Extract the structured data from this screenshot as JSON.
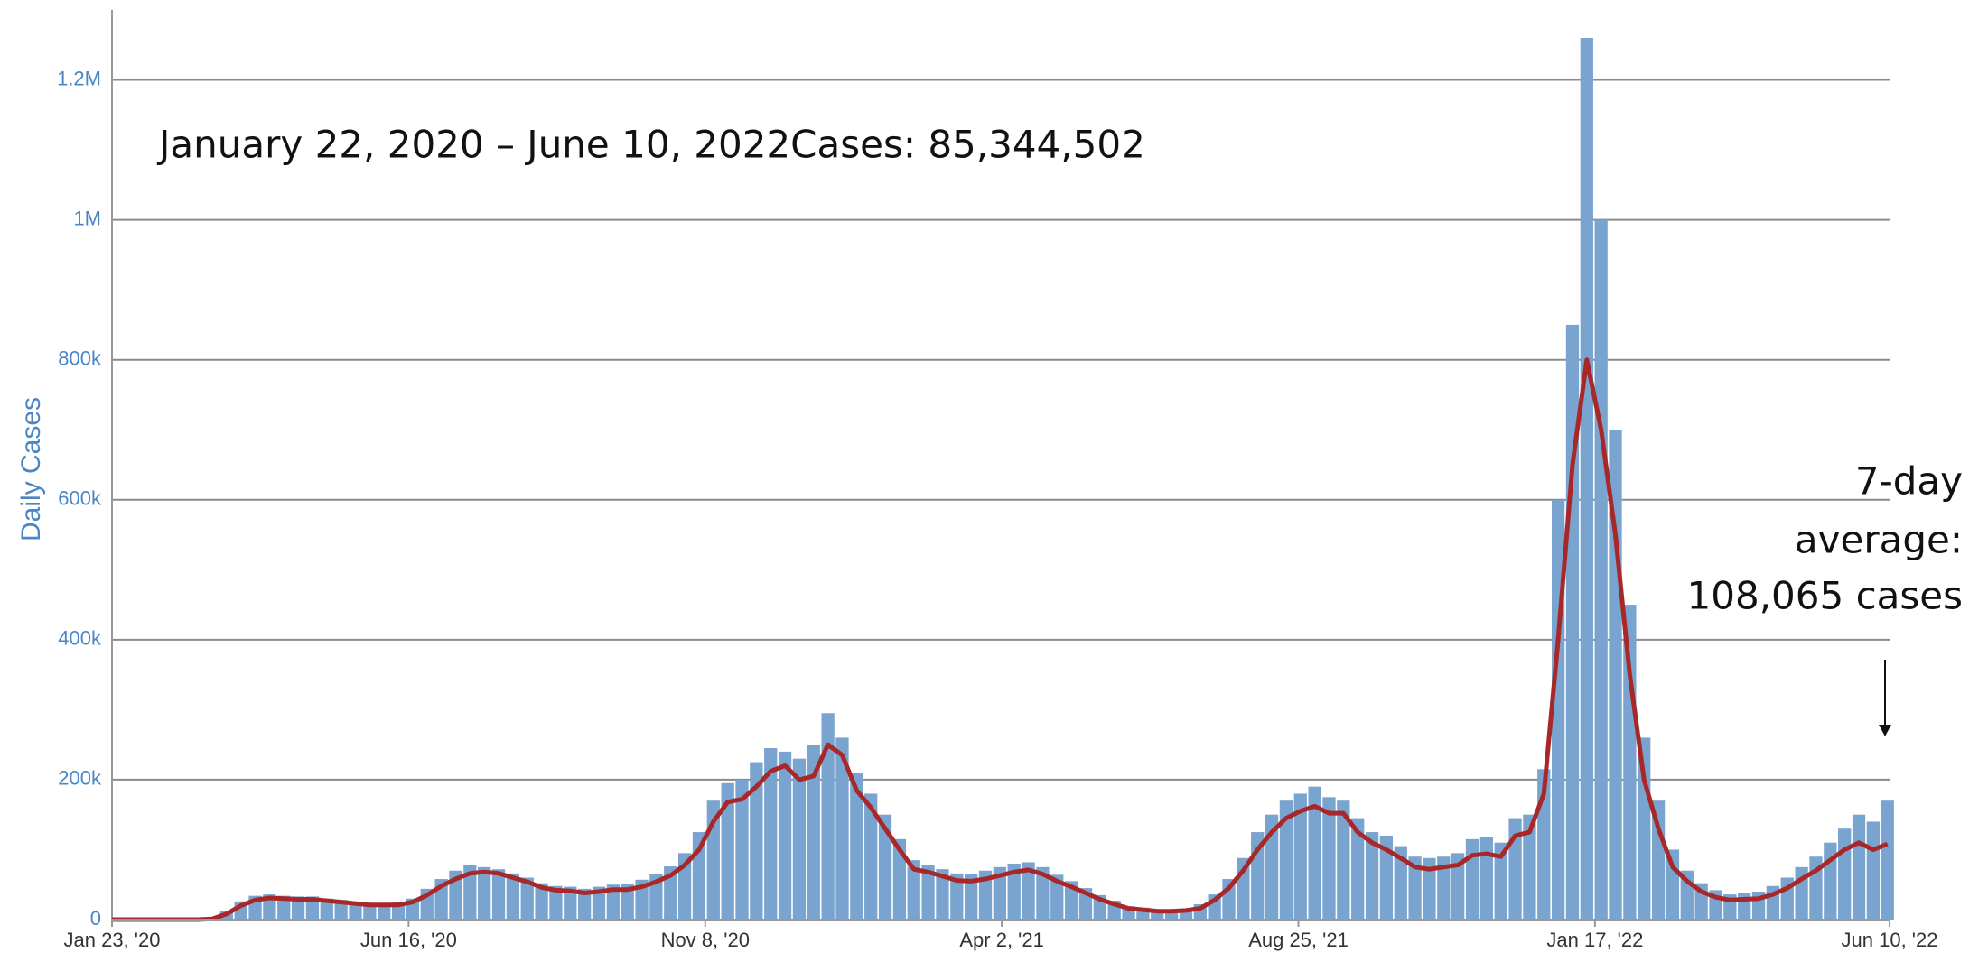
{
  "chart_data": {
    "type": "bar",
    "y_label": "Daily Cases",
    "annotations": [
      "January 22, 2020 – June 10, 2022Cases: 85,344,502",
      "7-day",
      "average:",
      "108,065 cases"
    ],
    "xlim": [
      "2020-01-23",
      "2022-06-10"
    ],
    "xticks": [
      {
        "value": "2020-01-23",
        "label": "Jan 23, '20"
      },
      {
        "value": "2020-06-16",
        "label": "Jun 16, '20"
      },
      {
        "value": "2020-11-08",
        "label": "Nov 8, '20"
      },
      {
        "value": "2021-04-02",
        "label": "Apr 2, '21"
      },
      {
        "value": "2021-08-25",
        "label": "Aug 25, '21"
      },
      {
        "value": "2022-01-17",
        "label": "Jan 17, '22"
      },
      {
        "value": "2022-06-10",
        "label": "Jun 10, '22"
      }
    ],
    "ylim": [
      0,
      1300000
    ],
    "yticks": [
      0,
      {
        "value": 200000,
        "label": "200k"
      },
      {
        "value": 400000,
        "label": "400k"
      },
      {
        "value": 600000,
        "label": "600k"
      },
      {
        "value": 800000,
        "label": "800k"
      },
      {
        "value": 1000000,
        "label": "1M"
      },
      {
        "value": 1200000,
        "label": "1.2M"
      }
    ],
    "grid": true,
    "x": [
      "2020-01-23",
      "2020-01-30",
      "2020-02-06",
      "2020-02-13",
      "2020-02-20",
      "2020-02-27",
      "2020-03-05",
      "2020-03-12",
      "2020-03-19",
      "2020-03-26",
      "2020-04-02",
      "2020-04-09",
      "2020-04-16",
      "2020-04-23",
      "2020-04-30",
      "2020-05-07",
      "2020-05-14",
      "2020-05-21",
      "2020-05-28",
      "2020-06-04",
      "2020-06-11",
      "2020-06-18",
      "2020-06-25",
      "2020-07-02",
      "2020-07-09",
      "2020-07-16",
      "2020-07-23",
      "2020-07-30",
      "2020-08-06",
      "2020-08-13",
      "2020-08-20",
      "2020-08-27",
      "2020-09-03",
      "2020-09-10",
      "2020-09-17",
      "2020-09-24",
      "2020-10-01",
      "2020-10-08",
      "2020-10-15",
      "2020-10-22",
      "2020-10-29",
      "2020-11-05",
      "2020-11-12",
      "2020-11-19",
      "2020-11-26",
      "2020-12-03",
      "2020-12-10",
      "2020-12-17",
      "2020-12-24",
      "2020-12-31",
      "2021-01-07",
      "2021-01-14",
      "2021-01-21",
      "2021-01-28",
      "2021-02-04",
      "2021-02-11",
      "2021-02-18",
      "2021-02-25",
      "2021-03-04",
      "2021-03-11",
      "2021-03-18",
      "2021-03-25",
      "2021-04-01",
      "2021-04-08",
      "2021-04-15",
      "2021-04-22",
      "2021-04-29",
      "2021-05-06",
      "2021-05-13",
      "2021-05-20",
      "2021-05-27",
      "2021-06-03",
      "2021-06-10",
      "2021-06-17",
      "2021-06-24",
      "2021-07-01",
      "2021-07-08",
      "2021-07-15",
      "2021-07-22",
      "2021-07-29",
      "2021-08-05",
      "2021-08-12",
      "2021-08-19",
      "2021-08-26",
      "2021-09-02",
      "2021-09-09",
      "2021-09-16",
      "2021-09-23",
      "2021-09-30",
      "2021-10-07",
      "2021-10-14",
      "2021-10-21",
      "2021-10-28",
      "2021-11-04",
      "2021-11-11",
      "2021-11-18",
      "2021-11-25",
      "2021-12-02",
      "2021-12-09",
      "2021-12-16",
      "2021-12-23",
      "2021-12-30",
      "2022-01-06",
      "2022-01-13",
      "2022-01-20",
      "2022-01-27",
      "2022-02-03",
      "2022-02-10",
      "2022-02-17",
      "2022-02-24",
      "2022-03-03",
      "2022-03-10",
      "2022-03-17",
      "2022-03-24",
      "2022-03-31",
      "2022-04-07",
      "2022-04-14",
      "2022-04-21",
      "2022-04-28",
      "2022-05-05",
      "2022-05-12",
      "2022-05-19",
      "2022-05-26",
      "2022-06-02",
      "2022-06-09"
    ],
    "series": [
      {
        "type": "bar",
        "color": "#7aa4d0",
        "values": [
          0,
          0,
          0,
          0,
          0,
          0,
          0,
          2000,
          12000,
          26000,
          34000,
          36000,
          34000,
          33000,
          33000,
          30000,
          28000,
          26000,
          24000,
          24000,
          25000,
          30000,
          44000,
          58000,
          70000,
          78000,
          75000,
          72000,
          66000,
          60000,
          52000,
          48000,
          47000,
          44000,
          47000,
          50000,
          51000,
          57000,
          65000,
          76000,
          95000,
          125000,
          170000,
          195000,
          200000,
          225000,
          245000,
          240000,
          230000,
          250000,
          295000,
          260000,
          210000,
          180000,
          150000,
          115000,
          85000,
          78000,
          72000,
          66000,
          65000,
          70000,
          75000,
          80000,
          82000,
          75000,
          64000,
          55000,
          45000,
          35000,
          27000,
          19000,
          17000,
          15000,
          14000,
          16000,
          22000,
          36000,
          58000,
          88000,
          125000,
          150000,
          170000,
          180000,
          190000,
          175000,
          170000,
          145000,
          125000,
          120000,
          105000,
          90000,
          88000,
          90000,
          95000,
          115000,
          118000,
          110000,
          145000,
          150000,
          215000,
          600000,
          850000,
          1260000,
          1000000,
          700000,
          450000,
          260000,
          170000,
          100000,
          70000,
          52000,
          42000,
          36000,
          38000,
          40000,
          48000,
          60000,
          75000,
          90000,
          110000,
          130000,
          150000,
          140000,
          170000
        ]
      },
      {
        "type": "line",
        "color": "#a8282a",
        "values": [
          0,
          0,
          0,
          0,
          0,
          0,
          0,
          1000,
          8000,
          20000,
          28000,
          31000,
          30000,
          29000,
          29000,
          27000,
          25000,
          23000,
          21000,
          21000,
          21000,
          25000,
          35000,
          48000,
          58000,
          66000,
          68000,
          66000,
          60000,
          54000,
          46000,
          42000,
          41000,
          38000,
          40000,
          43000,
          43000,
          47000,
          54000,
          63000,
          78000,
          100000,
          140000,
          168000,
          172000,
          190000,
          212000,
          220000,
          200000,
          205000,
          250000,
          235000,
          185000,
          160000,
          130000,
          100000,
          72000,
          68000,
          62000,
          56000,
          55000,
          58000,
          63000,
          68000,
          71000,
          65000,
          55000,
          47000,
          38000,
          29000,
          22000,
          16000,
          14000,
          12000,
          12000,
          13000,
          16000,
          28000,
          45000,
          70000,
          100000,
          125000,
          145000,
          155000,
          162000,
          152000,
          152000,
          125000,
          110000,
          100000,
          88000,
          75000,
          72000,
          75000,
          78000,
          92000,
          94000,
          90000,
          120000,
          125000,
          180000,
          400000,
          650000,
          800000,
          700000,
          550000,
          350000,
          200000,
          130000,
          75000,
          55000,
          40000,
          32000,
          28000,
          29000,
          30000,
          36000,
          45000,
          58000,
          70000,
          85000,
          100000,
          110000,
          100000,
          108065
        ]
      }
    ]
  }
}
